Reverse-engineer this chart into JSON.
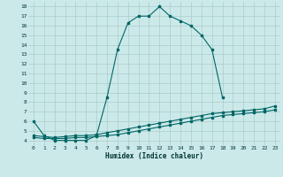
{
  "xlabel": "Humidex (Indice chaleur)",
  "bg_color": "#cce9e9",
  "grid_color": "#aacccc",
  "line_color": "#006666",
  "xlim": [
    -0.5,
    23.5
  ],
  "ylim": [
    3.5,
    18.5
  ],
  "xticks": [
    0,
    1,
    2,
    3,
    4,
    5,
    6,
    7,
    8,
    9,
    10,
    11,
    12,
    13,
    14,
    15,
    16,
    17,
    18,
    19,
    20,
    21,
    22,
    23
  ],
  "yticks": [
    4,
    5,
    6,
    7,
    8,
    9,
    10,
    11,
    12,
    13,
    14,
    15,
    16,
    17,
    18
  ],
  "curve1_x": [
    0,
    1,
    2,
    3,
    4,
    5,
    6,
    7,
    8,
    9,
    10,
    11,
    12,
    13,
    14,
    15,
    16,
    17,
    18
  ],
  "curve1_y": [
    6.0,
    4.5,
    4.0,
    4.0,
    4.0,
    4.0,
    4.5,
    8.5,
    13.5,
    16.3,
    17.0,
    17.0,
    18.0,
    17.0,
    16.5,
    16.0,
    15.0,
    13.5,
    8.5
  ],
  "curve2_x": [
    0,
    1,
    2,
    3,
    4,
    5,
    6,
    7,
    8,
    9,
    10,
    11,
    12,
    13,
    14,
    15,
    16,
    17,
    18,
    19,
    20,
    21,
    22,
    23
  ],
  "curve2_y": [
    4.3,
    4.2,
    4.2,
    4.2,
    4.3,
    4.3,
    4.4,
    4.5,
    4.6,
    4.8,
    5.0,
    5.2,
    5.4,
    5.6,
    5.8,
    6.0,
    6.2,
    6.4,
    6.6,
    6.7,
    6.8,
    6.9,
    7.0,
    7.2
  ],
  "curve3_x": [
    0,
    1,
    2,
    3,
    4,
    5,
    6,
    7,
    8,
    9,
    10,
    11,
    12,
    13,
    14,
    15,
    16,
    17,
    18,
    19,
    20,
    21,
    22,
    23
  ],
  "curve3_y": [
    4.5,
    4.4,
    4.3,
    4.4,
    4.5,
    4.5,
    4.6,
    4.8,
    5.0,
    5.2,
    5.4,
    5.6,
    5.8,
    6.0,
    6.2,
    6.4,
    6.6,
    6.8,
    6.9,
    7.0,
    7.1,
    7.2,
    7.3,
    7.6
  ]
}
